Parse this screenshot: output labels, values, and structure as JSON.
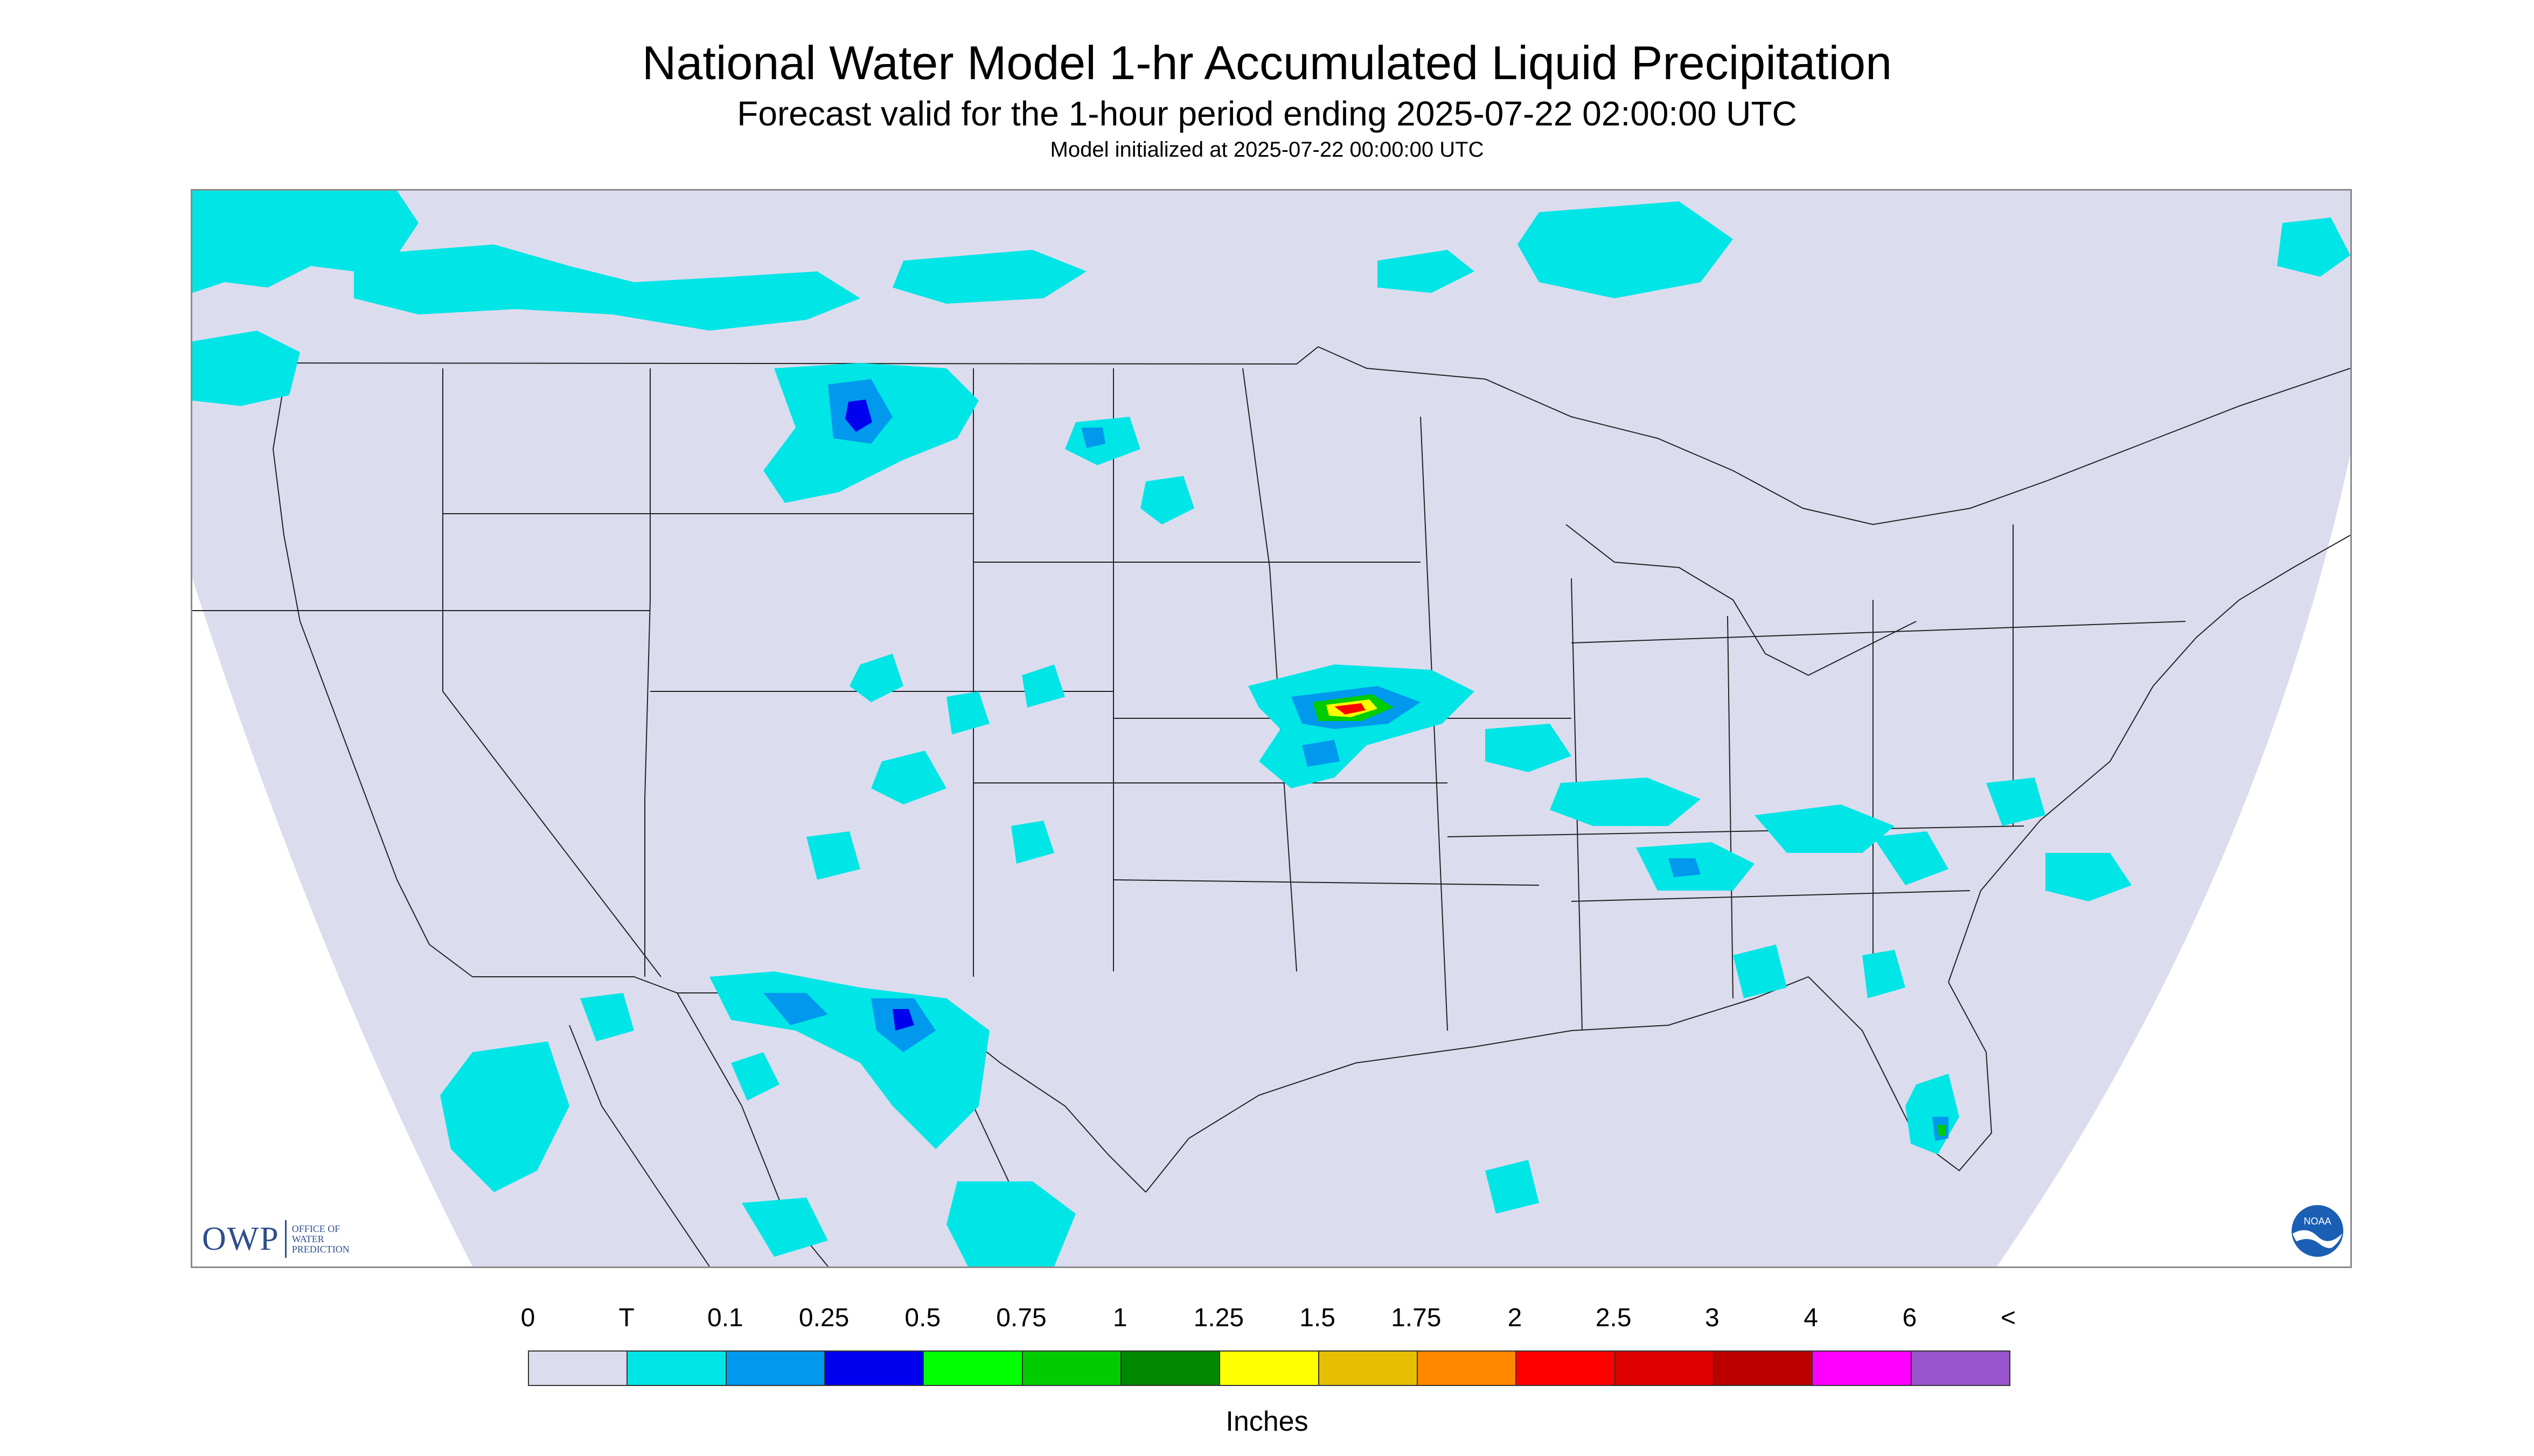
{
  "header": {
    "title": "National Water Model 1-hr Accumulated Liquid Precipitation",
    "subtitle": "Forecast valid for the 1-hour period ending 2025-07-22 02:00:00 UTC",
    "init": "Model initialized at 2025-07-22 00:00:00 UTC"
  },
  "logos": {
    "owp_text": "OWP",
    "owp_sub": [
      "OFFICE OF",
      "WATER",
      "PREDICTION"
    ],
    "noaa_text": "NOAA"
  },
  "colors": {
    "domain_fill": "#dcdcef",
    "ocean": "#ffffff",
    "border": "#222222"
  },
  "legend": {
    "labels": [
      "0",
      "T",
      "0.1",
      "0.25",
      "0.5",
      "0.75",
      "1",
      "1.25",
      "1.5",
      "1.75",
      "2",
      "2.5",
      "3",
      "4",
      "6",
      "<"
    ],
    "colors": [
      "#dcdcef",
      "#00e5e5",
      "#0099ee",
      "#0000ee",
      "#00ff00",
      "#00cc00",
      "#008800",
      "#ffff00",
      "#e6bf00",
      "#ff8800",
      "#ff0000",
      "#dd0000",
      "#bb0000",
      "#ff00ff",
      "#9955cc"
    ],
    "units": "Inches"
  },
  "precip_areas": [
    {
      "region": "northern-rockies",
      "level": 1
    },
    {
      "region": "montana-core",
      "level": 3
    },
    {
      "region": "north-dakota",
      "level": 2
    },
    {
      "region": "kansas-core",
      "level": 11
    },
    {
      "region": "new-mexico-texas",
      "level": 3
    },
    {
      "region": "southeast",
      "level": 2
    },
    {
      "region": "florida",
      "level": 4
    },
    {
      "region": "mexico-west",
      "level": 1
    }
  ]
}
